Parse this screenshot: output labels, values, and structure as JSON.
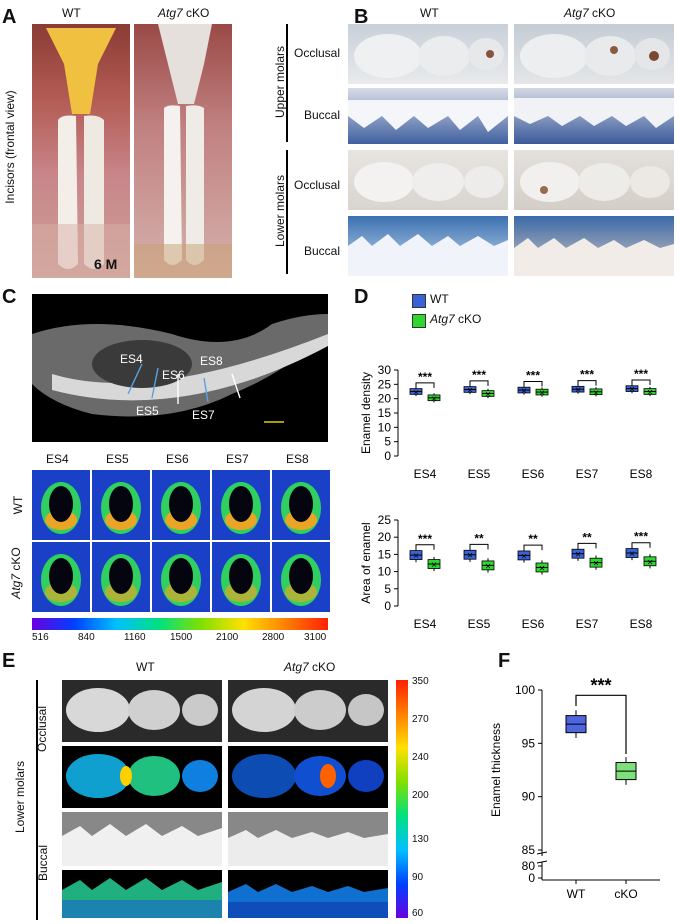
{
  "panels": {
    "A": "A",
    "B": "B",
    "C": "C",
    "D": "D",
    "E": "E",
    "F": "F"
  },
  "panelA": {
    "col_wt": "WT",
    "col_ko_gene": "Atg7",
    "col_ko_suffix": " cKO",
    "ylabel": "Incisors (frontal view)",
    "age": "6 M"
  },
  "panelB": {
    "col_wt": "WT",
    "col_ko_gene": "Atg7",
    "col_ko_suffix": " cKO",
    "group_upper": "Upper molars",
    "group_lower": "Lower molars",
    "rows": [
      "Occlusal",
      "Buccal",
      "Occlusal",
      "Buccal"
    ]
  },
  "panelC": {
    "sections": [
      "ES4",
      "ES5",
      "ES6",
      "ES7",
      "ES8"
    ],
    "row_wt": "WT",
    "row_ko_gene": "Atg7",
    "row_ko_suffix": " cKO",
    "scale_ticks": [
      "516",
      "840",
      "1160",
      "1500",
      "2100",
      "2800",
      "3100"
    ],
    "colors": {
      "low": "#5b00d6",
      "mid": "#00e08a",
      "high": "#ff2000"
    }
  },
  "panelD": {
    "legend_wt": "WT",
    "legend_ko_gene": "Atg7",
    "legend_ko_suffix": " cKO",
    "colors": {
      "wt": "#3a62d8",
      "ko": "#2fd62f"
    },
    "chart_data": [
      {
        "type": "box",
        "ylabel": "Enamel density",
        "categories": [
          "ES4",
          "ES5",
          "ES6",
          "ES7",
          "ES8"
        ],
        "ylim": [
          0,
          30
        ],
        "yticks": [
          0,
          5,
          10,
          15,
          20,
          25,
          30
        ],
        "series": [
          {
            "name": "WT",
            "values": [
              22.5,
              23.2,
              23.0,
              23.3,
              23.5
            ]
          },
          {
            "name": "Atg7 cKO",
            "values": [
              20.3,
              21.8,
              22.3,
              22.4,
              22.5
            ]
          }
        ],
        "significance": [
          "***",
          "***",
          "***",
          "***",
          "***"
        ]
      },
      {
        "type": "box",
        "ylabel": "Area of enamel",
        "categories": [
          "ES4",
          "ES5",
          "ES6",
          "ES7",
          "ES8"
        ],
        "ylim": [
          0,
          25
        ],
        "yticks": [
          0,
          5,
          10,
          15,
          20,
          25
        ],
        "series": [
          {
            "name": "WT",
            "values": [
              14.8,
              14.9,
              14.7,
              15.2,
              15.4
            ]
          },
          {
            "name": "Atg7 cKO",
            "values": [
              12.2,
              11.8,
              11.2,
              12.6,
              13.0
            ]
          }
        ],
        "significance": [
          "***",
          "**",
          "**",
          "**",
          "***"
        ]
      }
    ]
  },
  "panelE": {
    "col_wt": "WT",
    "col_ko_gene": "Atg7",
    "col_ko_suffix": " cKO",
    "group": "Lower molars",
    "rows": [
      "Occlusal",
      "Buccal"
    ],
    "scale_ticks": [
      "350",
      "270",
      "240",
      "200",
      "130",
      "90",
      "60"
    ]
  },
  "panelF": {
    "chart_data": {
      "type": "box",
      "ylabel": "Enamel thickness",
      "categories": [
        "WT",
        "cKO"
      ],
      "yticks": [
        "0",
        "80",
        "85",
        "90",
        "95",
        "100"
      ],
      "series": [
        {
          "name": "WT",
          "values": [
            96.8
          ]
        },
        {
          "name": "cKO",
          "values": [
            92.4
          ]
        }
      ],
      "significance": "***"
    },
    "colors": {
      "wt": "#4d66e0",
      "ko": "#7ee07a"
    }
  }
}
